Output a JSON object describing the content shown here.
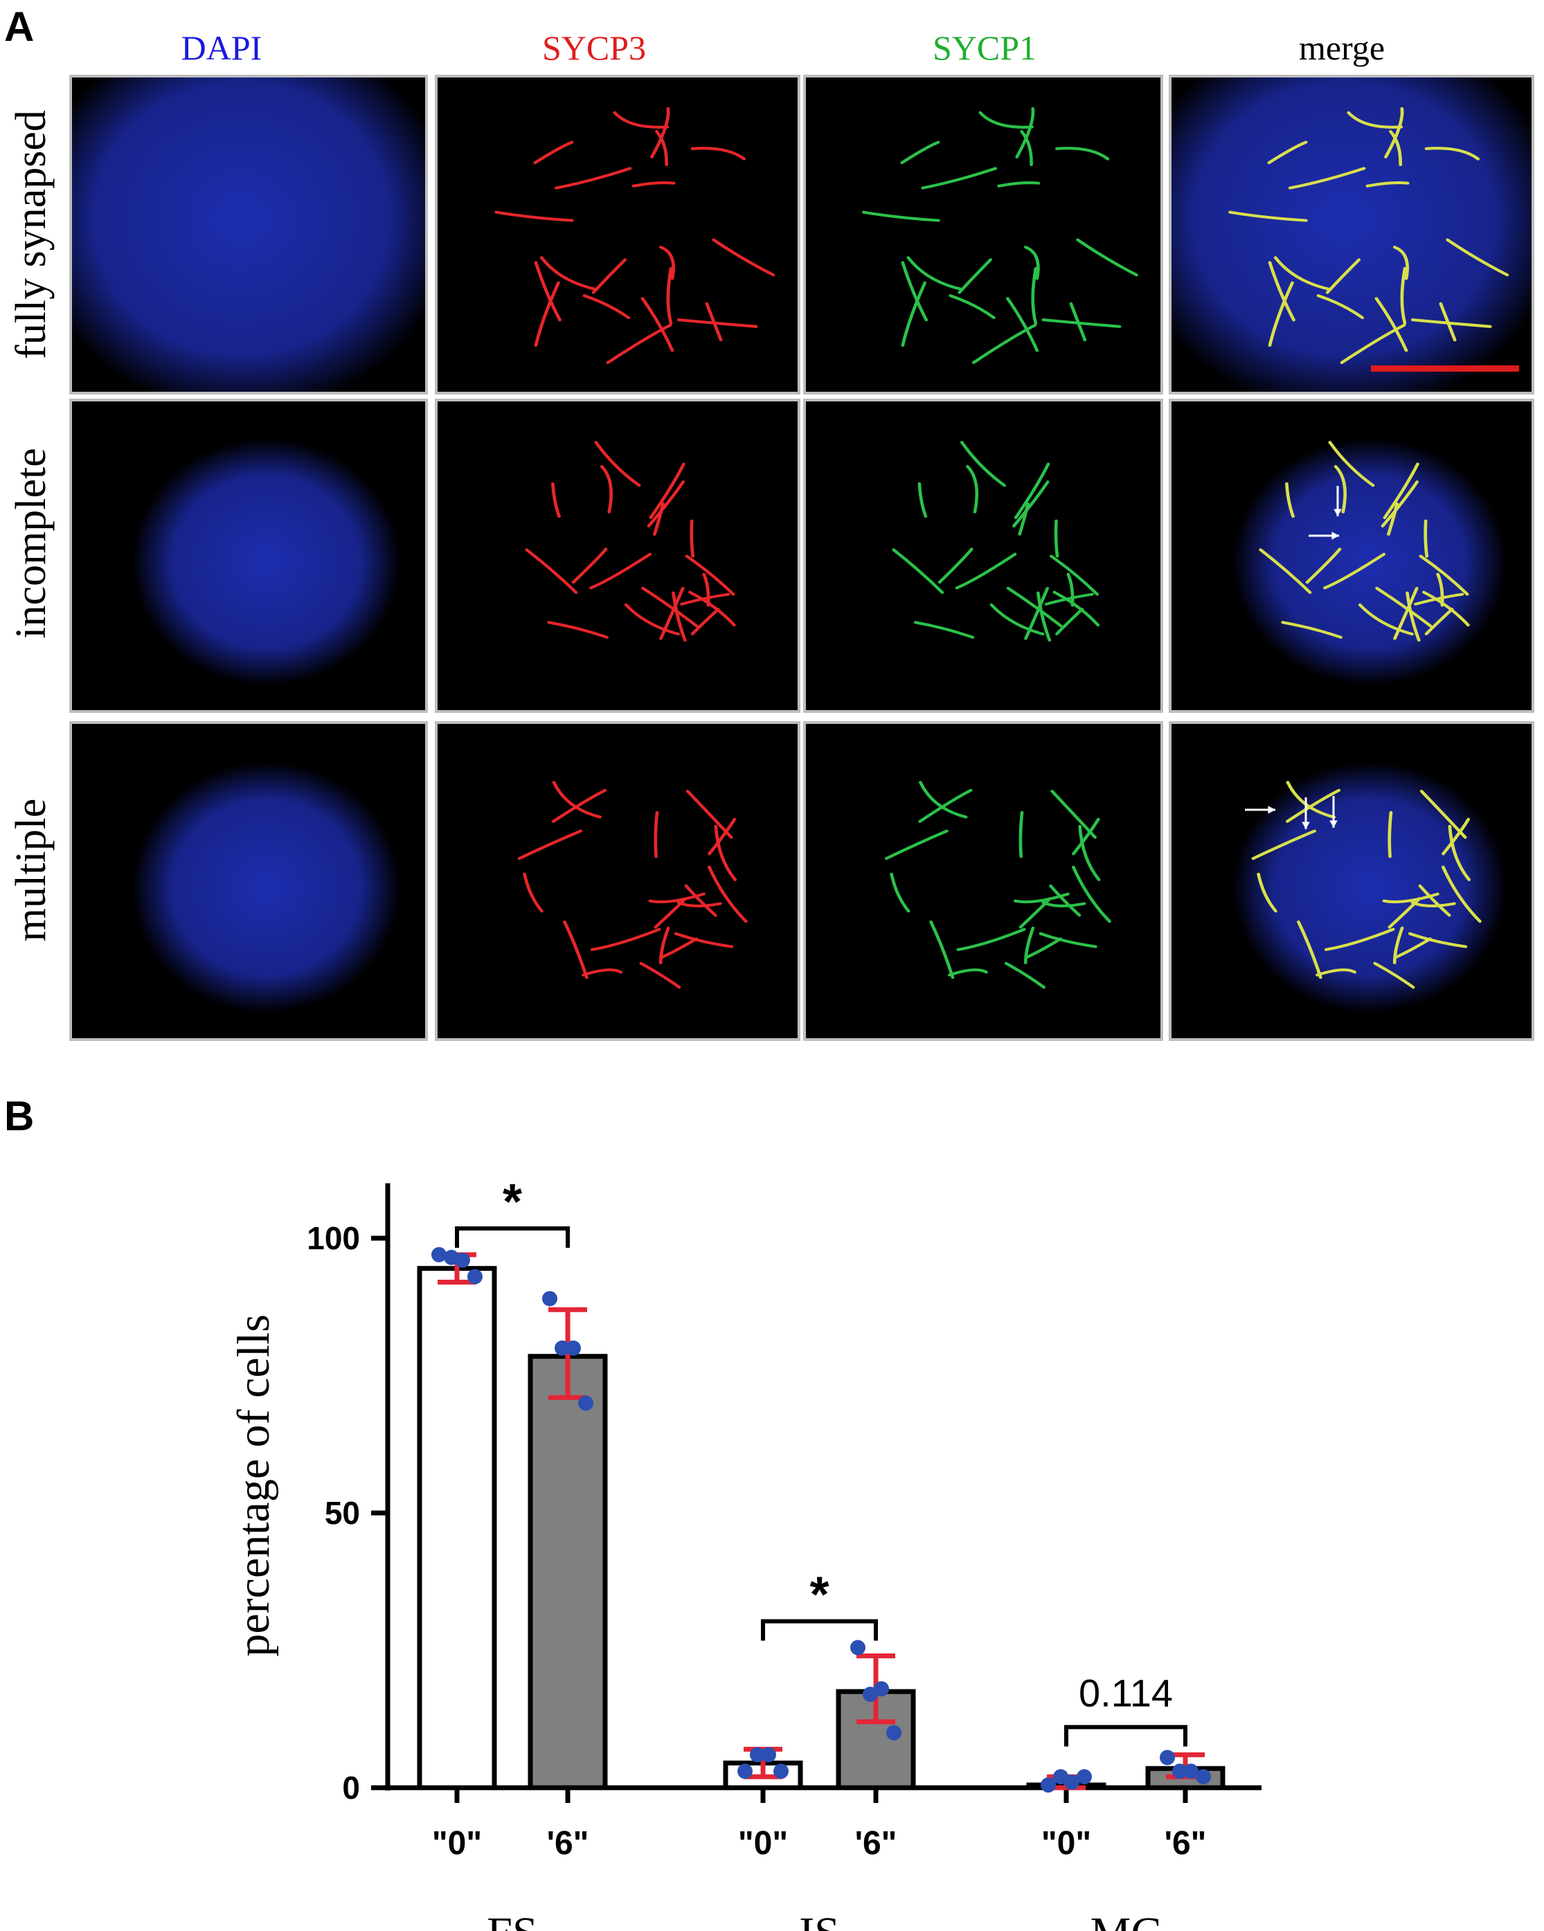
{
  "panel_a": {
    "letter": "A",
    "columns": [
      {
        "label": "DAPI",
        "color": "#1a1adb"
      },
      {
        "label": "SYCP3",
        "color": "#e01c1c"
      },
      {
        "label": "SYCP1",
        "color": "#1fae2f"
      },
      {
        "label": "merge",
        "color": "#000000"
      }
    ],
    "rows": [
      {
        "label": "fully synapsed"
      },
      {
        "label": "incomplete"
      },
      {
        "label": "multiple"
      }
    ],
    "colors": {
      "dapi": "#1f2fb8",
      "sycp3": "#e8262a",
      "sycp1": "#2bc24a",
      "merge": "#d9e04a",
      "scale_bar": "#e01c1c"
    }
  },
  "panel_b": {
    "letter": "B"
  },
  "chart_data": {
    "type": "bar",
    "ylabel": "percentage of cells",
    "ylim": [
      0,
      110
    ],
    "yticks": [
      0,
      50,
      100
    ],
    "groups": [
      {
        "name": "FS",
        "bars": [
          {
            "label": "\"0\"",
            "value": 94.5,
            "fill": "#ffffff",
            "err_low": 92,
            "err_high": 97,
            "points": [
              97,
              96,
              96.5,
              93
            ]
          },
          {
            "label": "'6\"",
            "value": 78.5,
            "fill": "#808080",
            "err_low": 71,
            "err_high": 87,
            "points": [
              89,
              80,
              80,
              70
            ]
          }
        ],
        "significance": "*"
      },
      {
        "name": "IS",
        "bars": [
          {
            "label": "\"0\"",
            "value": 4.5,
            "fill": "#ffffff",
            "err_low": 2,
            "err_high": 7,
            "points": [
              3,
              6,
              6,
              3
            ]
          },
          {
            "label": "'6\"",
            "value": 17.5,
            "fill": "#808080",
            "err_low": 12,
            "err_high": 24,
            "points": [
              25.5,
              18,
              17,
              10
            ]
          },
          {
            "label": "",
            "value": null
          }
        ],
        "significance": "*"
      },
      {
        "name": "MC",
        "bars": [
          {
            "label": "\"0\"",
            "value": 0.5,
            "fill": "#ffffff",
            "err_low": 0,
            "err_high": 2,
            "points": [
              0.5,
              1,
              2,
              2
            ]
          },
          {
            "label": "'6\"",
            "value": 3.5,
            "fill": "#808080",
            "err_low": 2,
            "err_high": 6,
            "points": [
              5.5,
              3,
              3,
              2
            ]
          }
        ],
        "significance": "0.114"
      }
    ],
    "colors": {
      "error_bar": "#e32636",
      "dot": "#2b4fb3",
      "bar_edge": "#000000"
    }
  }
}
